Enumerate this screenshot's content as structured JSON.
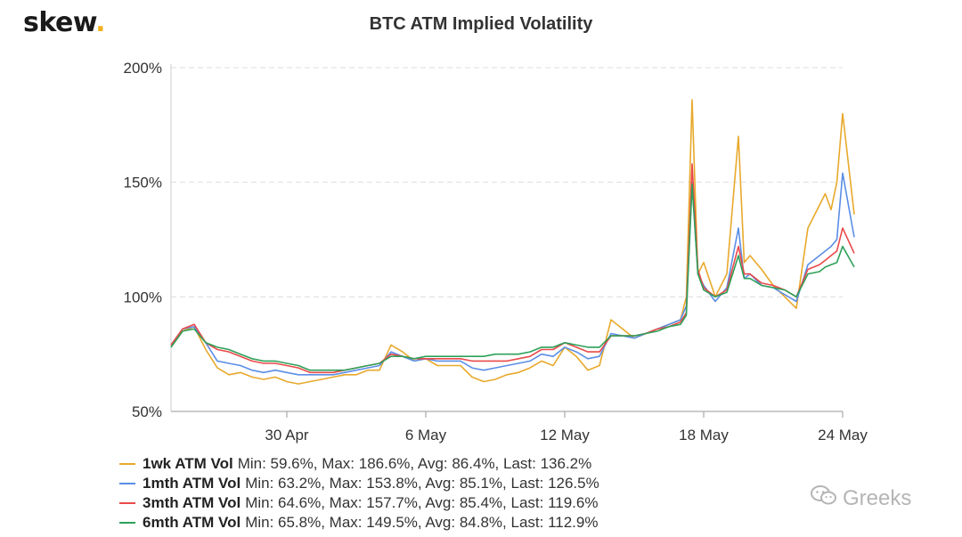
{
  "brand": {
    "name": "skew",
    "dot": "."
  },
  "watermark": {
    "text": "Greeks",
    "icon": "wechat-icon"
  },
  "chart_data": {
    "type": "line",
    "title": "BTC ATM Implied Volatility",
    "xlabel": "",
    "ylabel": "",
    "x_start": "2020-04-25",
    "x_end": "2020-05-24",
    "ylim": [
      50,
      200
    ],
    "yticks": [
      "50%",
      "100%",
      "150%",
      "200%"
    ],
    "ytick_values": [
      50,
      100,
      150,
      200
    ],
    "xticks": [
      "30 Apr",
      "6 May",
      "12 May",
      "18 May",
      "24 May"
    ],
    "xtick_dates": [
      "2020-04-30",
      "2020-05-06",
      "2020-05-12",
      "2020-05-18",
      "2020-05-24"
    ],
    "grid": "horizontal dashed",
    "legend_position": "bottom",
    "x": [
      "2020-04-25",
      "2020-04-25T12",
      "2020-04-26",
      "2020-04-26T12",
      "2020-04-27",
      "2020-04-27T12",
      "2020-04-28",
      "2020-04-28T12",
      "2020-04-29",
      "2020-04-29T12",
      "2020-04-30",
      "2020-04-30T12",
      "2020-05-01",
      "2020-05-01T12",
      "2020-05-02",
      "2020-05-02T12",
      "2020-05-03",
      "2020-05-03T12",
      "2020-05-04",
      "2020-05-04T12",
      "2020-05-05",
      "2020-05-05T12",
      "2020-05-06",
      "2020-05-06T12",
      "2020-05-07",
      "2020-05-07T12",
      "2020-05-08",
      "2020-05-08T12",
      "2020-05-09",
      "2020-05-09T12",
      "2020-05-10",
      "2020-05-10T12",
      "2020-05-11",
      "2020-05-11T12",
      "2020-05-12",
      "2020-05-12T12",
      "2020-05-13",
      "2020-05-13T12",
      "2020-05-14",
      "2020-05-14T12",
      "2020-05-15",
      "2020-05-15T12",
      "2020-05-16",
      "2020-05-16T12",
      "2020-05-17",
      "2020-05-17T06",
      "2020-05-17T12",
      "2020-05-17T18",
      "2020-05-18",
      "2020-05-18T12",
      "2020-05-19",
      "2020-05-19T12",
      "2020-05-19T18",
      "2020-05-20",
      "2020-05-20T12",
      "2020-05-21",
      "2020-05-21T12",
      "2020-05-22",
      "2020-05-22T12",
      "2020-05-23",
      "2020-05-23T06",
      "2020-05-23T12",
      "2020-05-23T18",
      "2020-05-24",
      "2020-05-24T12"
    ],
    "series": [
      {
        "name": "1wk ATM Vol",
        "color": "#e8a92c",
        "stats": "Min: 59.6%, Max: 186.6%, Avg: 86.4%, Last: 136.2%",
        "values": [
          78,
          85,
          87,
          77,
          69,
          66,
          67,
          65,
          64,
          65,
          63,
          62,
          63,
          64,
          65,
          66,
          66,
          68,
          68,
          79,
          76,
          72,
          73,
          70,
          70,
          70,
          65,
          63,
          64,
          66,
          67,
          69,
          72,
          70,
          78,
          74,
          68,
          70,
          90,
          86,
          82,
          84,
          86,
          88,
          90,
          100,
          186,
          110,
          115,
          100,
          110,
          170,
          115,
          118,
          112,
          105,
          100,
          95,
          130,
          140,
          145,
          138,
          150,
          180,
          136
        ]
      },
      {
        "name": "1mth ATM Vol",
        "color": "#5b8ee6",
        "stats": "Min: 63.2%, Max: 153.8%, Avg: 85.1%, Last: 126.5%",
        "values": [
          79,
          86,
          87,
          80,
          72,
          71,
          70,
          68,
          67,
          68,
          67,
          66,
          66,
          66,
          66,
          67,
          68,
          69,
          70,
          76,
          74,
          72,
          73,
          72,
          72,
          72,
          69,
          68,
          69,
          70,
          71,
          72,
          75,
          74,
          78,
          76,
          73,
          74,
          84,
          83,
          82,
          84,
          86,
          88,
          90,
          96,
          150,
          110,
          105,
          98,
          104,
          130,
          108,
          110,
          105,
          104,
          101,
          98,
          114,
          118,
          120,
          122,
          125,
          154,
          126
        ]
      },
      {
        "name": "3mth ATM Vol",
        "color": "#ea4949",
        "stats": "Min: 64.6%, Max: 157.7%, Avg: 85.4%, Last: 119.6%",
        "values": [
          79,
          86,
          88,
          80,
          77,
          76,
          74,
          72,
          71,
          71,
          70,
          69,
          67,
          67,
          67,
          68,
          69,
          70,
          71,
          75,
          74,
          73,
          73,
          73,
          73,
          73,
          72,
          72,
          72,
          72,
          73,
          74,
          77,
          77,
          80,
          78,
          76,
          76,
          83,
          83,
          83,
          84,
          86,
          87,
          89,
          93,
          158,
          112,
          104,
          100,
          103,
          122,
          110,
          110,
          106,
          105,
          103,
          100,
          112,
          114,
          116,
          118,
          120,
          130,
          119
        ]
      },
      {
        "name": "6mth ATM Vol",
        "color": "#2fa05a",
        "stats": "Min: 65.8%, Max: 149.5%, Avg: 84.8%, Last: 112.9%",
        "values": [
          78,
          85,
          86,
          80,
          78,
          77,
          75,
          73,
          72,
          72,
          71,
          70,
          68,
          68,
          68,
          68,
          69,
          70,
          71,
          74,
          74,
          73,
          74,
          74,
          74,
          74,
          74,
          74,
          75,
          75,
          75,
          76,
          78,
          78,
          80,
          79,
          78,
          78,
          83,
          83,
          83,
          84,
          85,
          87,
          88,
          92,
          149,
          110,
          103,
          100,
          102,
          118,
          108,
          108,
          105,
          104,
          103,
          100,
          110,
          111,
          113,
          114,
          115,
          122,
          113
        ]
      }
    ]
  }
}
